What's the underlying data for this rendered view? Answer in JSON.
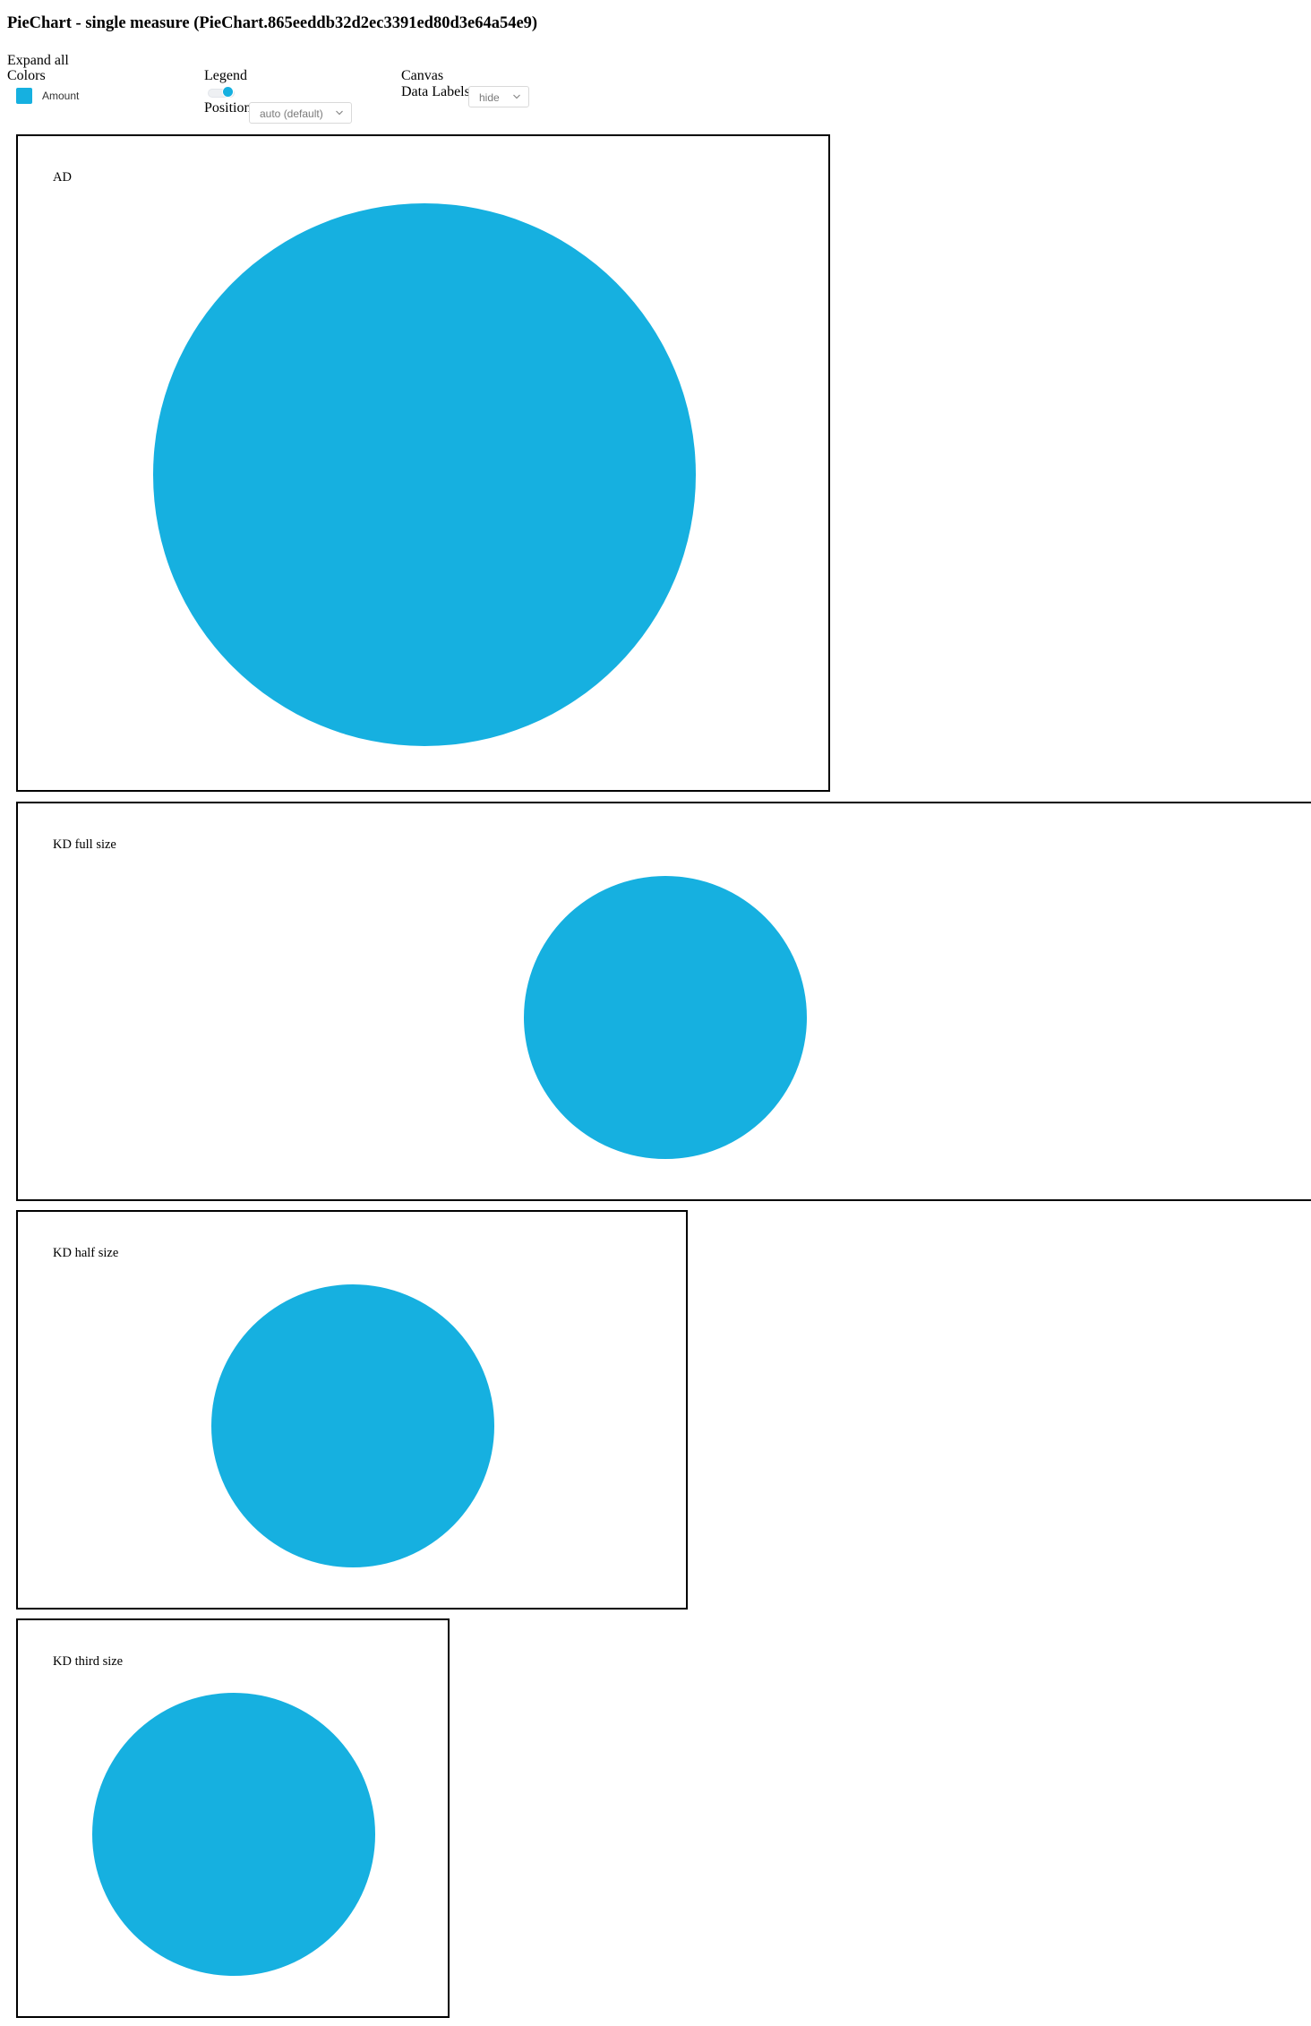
{
  "page": {
    "title": "PieChart - single measure (PieChart.865eeddb32d2ec3391ed80d3e64a54e9)"
  },
  "controls": {
    "expand_all_label": "Expand all",
    "colors": {
      "label": "Colors",
      "items": [
        {
          "label": "Amount",
          "color": "#16b0e0"
        }
      ]
    },
    "legend": {
      "label": "Legend",
      "toggle_on": true,
      "position_label": "Position",
      "position_value": "auto (default)"
    },
    "canvas": {
      "label": "Canvas",
      "data_labels_label": "Data Labels",
      "data_labels_value": "hide"
    }
  },
  "charts": [
    {
      "id": "ad",
      "title": "AD"
    },
    {
      "id": "kd-full",
      "title": "KD full size"
    },
    {
      "id": "kd-half",
      "title": "KD half size"
    },
    {
      "id": "kd-third",
      "title": "KD third size"
    }
  ],
  "chart_data": [
    {
      "type": "pie",
      "title": "AD",
      "categories": [
        "Amount"
      ],
      "values": [
        100
      ],
      "colors": [
        "#16b0e0"
      ],
      "data_labels": "hide"
    },
    {
      "type": "pie",
      "title": "KD full size",
      "categories": [
        "Amount"
      ],
      "values": [
        100
      ],
      "colors": [
        "#16b0e0"
      ],
      "data_labels": "hide"
    },
    {
      "type": "pie",
      "title": "KD half size",
      "categories": [
        "Amount"
      ],
      "values": [
        100
      ],
      "colors": [
        "#16b0e0"
      ],
      "data_labels": "hide"
    },
    {
      "type": "pie",
      "title": "KD third size",
      "categories": [
        "Amount"
      ],
      "values": [
        100
      ],
      "colors": [
        "#16b0e0"
      ],
      "data_labels": "hide"
    }
  ]
}
